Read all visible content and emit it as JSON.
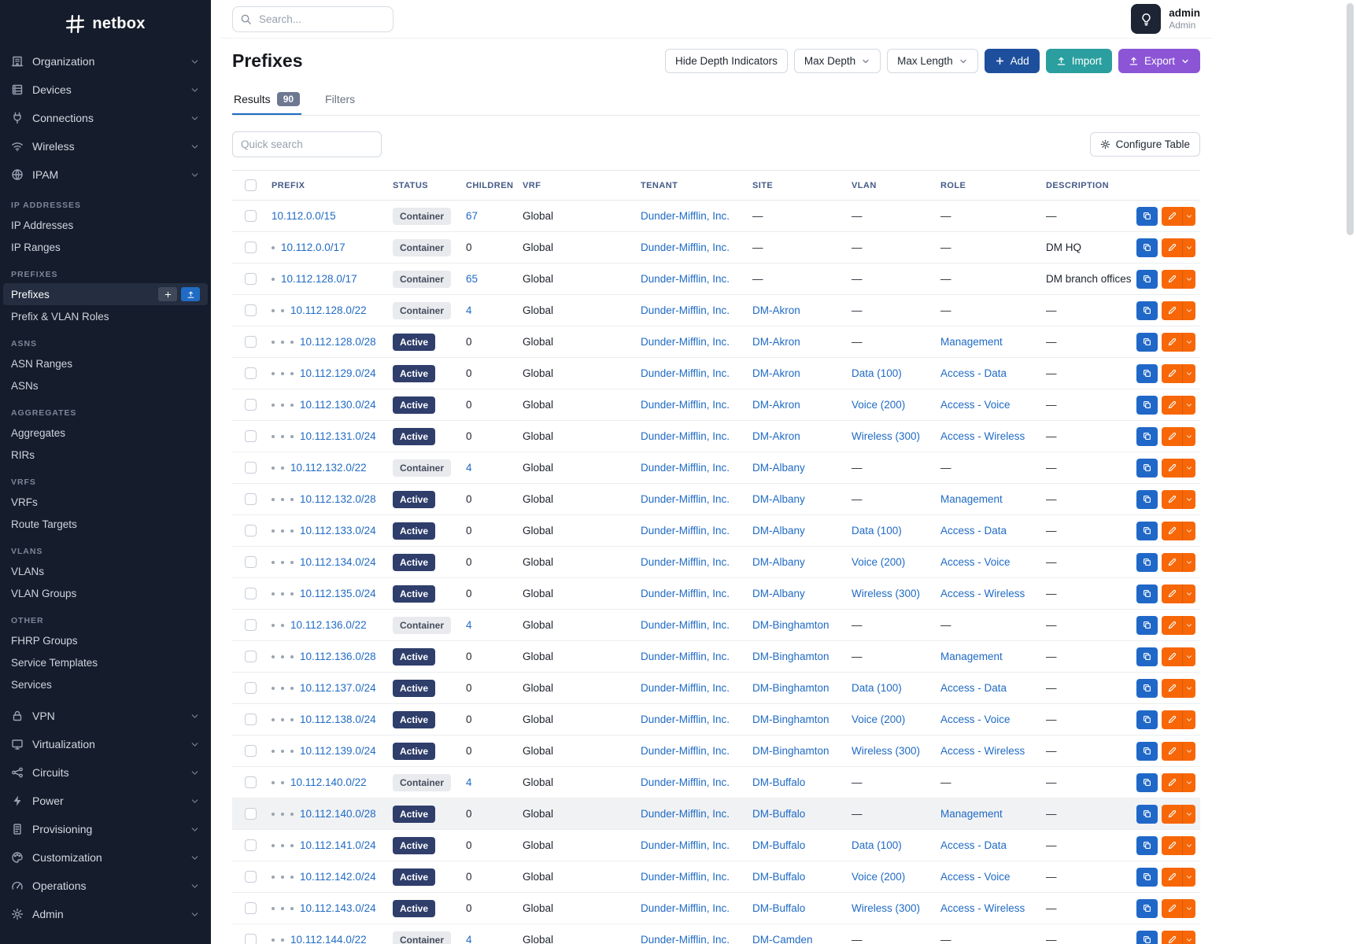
{
  "brand": {
    "name": "netbox"
  },
  "topbar": {
    "search_placeholder": "Search...",
    "user": {
      "name": "admin",
      "role": "Admin"
    }
  },
  "sidebar": {
    "top_items": [
      {
        "label": "Organization",
        "icon": "building-icon"
      },
      {
        "label": "Devices",
        "icon": "devices-icon"
      },
      {
        "label": "Connections",
        "icon": "plug-icon"
      },
      {
        "label": "Wireless",
        "icon": "wifi-icon"
      },
      {
        "label": "IPAM",
        "icon": "globe-icon"
      }
    ],
    "sections": [
      {
        "title": "IP ADDRESSES",
        "items": [
          {
            "label": "IP Addresses"
          },
          {
            "label": "IP Ranges"
          }
        ]
      },
      {
        "title": "PREFIXES",
        "items": [
          {
            "label": "Prefixes",
            "active": true
          },
          {
            "label": "Prefix & VLAN Roles"
          }
        ]
      },
      {
        "title": "ASNS",
        "items": [
          {
            "label": "ASN Ranges"
          },
          {
            "label": "ASNs"
          }
        ]
      },
      {
        "title": "AGGREGATES",
        "items": [
          {
            "label": "Aggregates"
          },
          {
            "label": "RIRs"
          }
        ]
      },
      {
        "title": "VRFS",
        "items": [
          {
            "label": "VRFs"
          },
          {
            "label": "Route Targets"
          }
        ]
      },
      {
        "title": "VLANS",
        "items": [
          {
            "label": "VLANs"
          },
          {
            "label": "VLAN Groups"
          }
        ]
      },
      {
        "title": "OTHER",
        "items": [
          {
            "label": "FHRP Groups"
          },
          {
            "label": "Service Templates"
          },
          {
            "label": "Services"
          }
        ]
      }
    ],
    "bottom_items": [
      {
        "label": "VPN",
        "icon": "lock-icon"
      },
      {
        "label": "Virtualization",
        "icon": "monitor-icon"
      },
      {
        "label": "Circuits",
        "icon": "share-nodes-icon"
      },
      {
        "label": "Power",
        "icon": "bolt-icon"
      },
      {
        "label": "Provisioning",
        "icon": "document-icon"
      },
      {
        "label": "Customization",
        "icon": "palette-icon"
      },
      {
        "label": "Operations",
        "icon": "gauge-icon"
      },
      {
        "label": "Admin",
        "icon": "gear-icon"
      }
    ]
  },
  "page": {
    "title": "Prefixes",
    "toolbar": {
      "hide_depth": "Hide Depth Indicators",
      "max_depth": "Max Depth",
      "max_length": "Max Length",
      "add": "Add",
      "import": "Import",
      "export": "Export"
    },
    "tabs": [
      {
        "label": "Results",
        "badge": "90",
        "active": true
      },
      {
        "label": "Filters"
      }
    ],
    "quick_search_placeholder": "Quick search",
    "configure_table": "Configure Table"
  },
  "table": {
    "columns": [
      "PREFIX",
      "STATUS",
      "CHILDREN",
      "VRF",
      "TENANT",
      "SITE",
      "VLAN",
      "ROLE",
      "DESCRIPTION"
    ],
    "rows": [
      {
        "depth": 0,
        "prefix": "10.112.0.0/15",
        "status": "Container",
        "children": 67,
        "vrf": "Global",
        "tenant": "Dunder-Mifflin, Inc.",
        "site": "—",
        "vlan": "—",
        "role": "—",
        "description": "—"
      },
      {
        "depth": 1,
        "prefix": "10.112.0.0/17",
        "status": "Container",
        "children": 0,
        "vrf": "Global",
        "tenant": "Dunder-Mifflin, Inc.",
        "site": "—",
        "vlan": "—",
        "role": "—",
        "description": "DM HQ"
      },
      {
        "depth": 1,
        "prefix": "10.112.128.0/17",
        "status": "Container",
        "children": 65,
        "vrf": "Global",
        "tenant": "Dunder-Mifflin, Inc.",
        "site": "—",
        "vlan": "—",
        "role": "—",
        "description": "DM branch offices"
      },
      {
        "depth": 2,
        "prefix": "10.112.128.0/22",
        "status": "Container",
        "children": 4,
        "vrf": "Global",
        "tenant": "Dunder-Mifflin, Inc.",
        "site": "DM-Akron",
        "vlan": "—",
        "role": "—",
        "description": "—"
      },
      {
        "depth": 3,
        "prefix": "10.112.128.0/28",
        "status": "Active",
        "children": 0,
        "vrf": "Global",
        "tenant": "Dunder-Mifflin, Inc.",
        "site": "DM-Akron",
        "vlan": "—",
        "role": "Management",
        "description": "—"
      },
      {
        "depth": 3,
        "prefix": "10.112.129.0/24",
        "status": "Active",
        "children": 0,
        "vrf": "Global",
        "tenant": "Dunder-Mifflin, Inc.",
        "site": "DM-Akron",
        "vlan": "Data (100)",
        "role": "Access - Data",
        "description": "—"
      },
      {
        "depth": 3,
        "prefix": "10.112.130.0/24",
        "status": "Active",
        "children": 0,
        "vrf": "Global",
        "tenant": "Dunder-Mifflin, Inc.",
        "site": "DM-Akron",
        "vlan": "Voice (200)",
        "role": "Access - Voice",
        "description": "—"
      },
      {
        "depth": 3,
        "prefix": "10.112.131.0/24",
        "status": "Active",
        "children": 0,
        "vrf": "Global",
        "tenant": "Dunder-Mifflin, Inc.",
        "site": "DM-Akron",
        "vlan": "Wireless (300)",
        "role": "Access - Wireless",
        "description": "—"
      },
      {
        "depth": 2,
        "prefix": "10.112.132.0/22",
        "status": "Container",
        "children": 4,
        "vrf": "Global",
        "tenant": "Dunder-Mifflin, Inc.",
        "site": "DM-Albany",
        "vlan": "—",
        "role": "—",
        "description": "—"
      },
      {
        "depth": 3,
        "prefix": "10.112.132.0/28",
        "status": "Active",
        "children": 0,
        "vrf": "Global",
        "tenant": "Dunder-Mifflin, Inc.",
        "site": "DM-Albany",
        "vlan": "—",
        "role": "Management",
        "description": "—"
      },
      {
        "depth": 3,
        "prefix": "10.112.133.0/24",
        "status": "Active",
        "children": 0,
        "vrf": "Global",
        "tenant": "Dunder-Mifflin, Inc.",
        "site": "DM-Albany",
        "vlan": "Data (100)",
        "role": "Access - Data",
        "description": "—"
      },
      {
        "depth": 3,
        "prefix": "10.112.134.0/24",
        "status": "Active",
        "children": 0,
        "vrf": "Global",
        "tenant": "Dunder-Mifflin, Inc.",
        "site": "DM-Albany",
        "vlan": "Voice (200)",
        "role": "Access - Voice",
        "description": "—"
      },
      {
        "depth": 3,
        "prefix": "10.112.135.0/24",
        "status": "Active",
        "children": 0,
        "vrf": "Global",
        "tenant": "Dunder-Mifflin, Inc.",
        "site": "DM-Albany",
        "vlan": "Wireless (300)",
        "role": "Access - Wireless",
        "description": "—"
      },
      {
        "depth": 2,
        "prefix": "10.112.136.0/22",
        "status": "Container",
        "children": 4,
        "vrf": "Global",
        "tenant": "Dunder-Mifflin, Inc.",
        "site": "DM-Binghamton",
        "vlan": "—",
        "role": "—",
        "description": "—"
      },
      {
        "depth": 3,
        "prefix": "10.112.136.0/28",
        "status": "Active",
        "children": 0,
        "vrf": "Global",
        "tenant": "Dunder-Mifflin, Inc.",
        "site": "DM-Binghamton",
        "vlan": "—",
        "role": "Management",
        "description": "—"
      },
      {
        "depth": 3,
        "prefix": "10.112.137.0/24",
        "status": "Active",
        "children": 0,
        "vrf": "Global",
        "tenant": "Dunder-Mifflin, Inc.",
        "site": "DM-Binghamton",
        "vlan": "Data (100)",
        "role": "Access - Data",
        "description": "—"
      },
      {
        "depth": 3,
        "prefix": "10.112.138.0/24",
        "status": "Active",
        "children": 0,
        "vrf": "Global",
        "tenant": "Dunder-Mifflin, Inc.",
        "site": "DM-Binghamton",
        "vlan": "Voice (200)",
        "role": "Access - Voice",
        "description": "—"
      },
      {
        "depth": 3,
        "prefix": "10.112.139.0/24",
        "status": "Active",
        "children": 0,
        "vrf": "Global",
        "tenant": "Dunder-Mifflin, Inc.",
        "site": "DM-Binghamton",
        "vlan": "Wireless (300)",
        "role": "Access - Wireless",
        "description": "—"
      },
      {
        "depth": 2,
        "prefix": "10.112.140.0/22",
        "status": "Container",
        "children": 4,
        "vrf": "Global",
        "tenant": "Dunder-Mifflin, Inc.",
        "site": "DM-Buffalo",
        "vlan": "—",
        "role": "—",
        "description": "—"
      },
      {
        "depth": 3,
        "prefix": "10.112.140.0/28",
        "status": "Active",
        "children": 0,
        "vrf": "Global",
        "tenant": "Dunder-Mifflin, Inc.",
        "site": "DM-Buffalo",
        "vlan": "—",
        "role": "Management",
        "description": "—",
        "highlight": true
      },
      {
        "depth": 3,
        "prefix": "10.112.141.0/24",
        "status": "Active",
        "children": 0,
        "vrf": "Global",
        "tenant": "Dunder-Mifflin, Inc.",
        "site": "DM-Buffalo",
        "vlan": "Data (100)",
        "role": "Access - Data",
        "description": "—"
      },
      {
        "depth": 3,
        "prefix": "10.112.142.0/24",
        "status": "Active",
        "children": 0,
        "vrf": "Global",
        "tenant": "Dunder-Mifflin, Inc.",
        "site": "DM-Buffalo",
        "vlan": "Voice (200)",
        "role": "Access - Voice",
        "description": "—"
      },
      {
        "depth": 3,
        "prefix": "10.112.143.0/24",
        "status": "Active",
        "children": 0,
        "vrf": "Global",
        "tenant": "Dunder-Mifflin, Inc.",
        "site": "DM-Buffalo",
        "vlan": "Wireless (300)",
        "role": "Access - Wireless",
        "description": "—"
      },
      {
        "depth": 2,
        "prefix": "10.112.144.0/22",
        "status": "Container",
        "children": 4,
        "vrf": "Global",
        "tenant": "Dunder-Mifflin, Inc.",
        "site": "DM-Camden",
        "vlan": "—",
        "role": "—",
        "description": "—"
      }
    ]
  },
  "colors": {
    "link": "#206bc4",
    "active_badge": "#2f3e6b",
    "container_badge_bg": "#e8eaee",
    "add_button": "#1e4f9c",
    "import_button": "#2b9f9f",
    "export_button": "#8b55d6",
    "edit_button": "#f76707",
    "clone_button": "#2068c8",
    "sidebar_bg": "#151c2b"
  }
}
